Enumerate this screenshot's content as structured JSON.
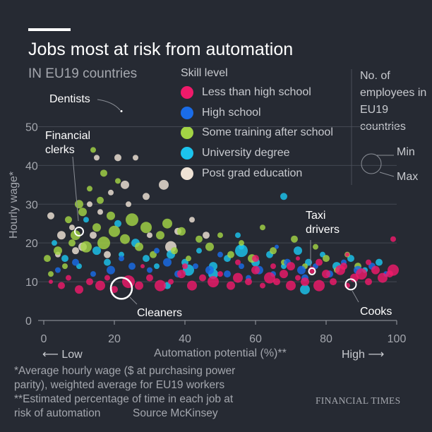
{
  "header": {
    "title": "Jobs most at risk from automation",
    "subtitle": "IN EU19 countries"
  },
  "legend": {
    "title": "Skill level",
    "items": [
      {
        "label": "Less than high school",
        "color": "#ef1a6a"
      },
      {
        "label": "High school",
        "color": "#1a6ce8"
      },
      {
        "label": "Some training after school",
        "color": "#a3d445"
      },
      {
        "label": "University degree",
        "color": "#1cc4ee"
      },
      {
        "label": "Post grad education",
        "color": "#efe3d6"
      }
    ],
    "size_title": "No. of employees in EU19 countries",
    "size_min": "Min",
    "size_max": "Max"
  },
  "axes": {
    "y_label": "Hourly wage*",
    "x_label": "Automation potential (%)**",
    "x_low": "⟵ Low",
    "x_high": "High ⟶"
  },
  "footnotes": {
    "line1": "*Average hourly wage ($ at purchasing power",
    "line2": "parity), weighted average for EU19 workers",
    "line3": "**Estimated percentage of time in each job at",
    "line4": "risk of automation",
    "source": "Source McKinsey",
    "brand": "FINANCIAL TIMES"
  },
  "chart_data": {
    "type": "scatter",
    "title": "Jobs most at risk from automation",
    "subtitle": "IN EU19 countries",
    "xlabel": "Automation potential (%)**",
    "ylabel": "Hourly wage*",
    "xlim": [
      0,
      100
    ],
    "ylim": [
      0,
      55
    ],
    "xticks": [
      0,
      20,
      40,
      60,
      80,
      100
    ],
    "yticks": [
      0,
      10,
      20,
      30,
      40,
      50
    ],
    "grid": "horizontal",
    "size_encoding": "No. of employees in EU19 countries",
    "series": [
      {
        "name": "Less than high school",
        "color": "#ef1a6a",
        "points": [
          [
            2,
            10,
            3
          ],
          [
            5,
            9,
            5
          ],
          [
            7,
            11,
            4
          ],
          [
            10,
            8,
            6
          ],
          [
            13,
            10,
            5
          ],
          [
            16,
            9,
            7
          ],
          [
            18,
            11,
            4
          ],
          [
            20,
            8,
            5
          ],
          [
            24,
            10,
            9
          ],
          [
            27,
            9,
            6
          ],
          [
            30,
            11,
            5
          ],
          [
            33,
            9,
            8
          ],
          [
            36,
            10,
            4
          ],
          [
            39,
            12,
            6
          ],
          [
            42,
            9,
            7
          ],
          [
            45,
            11,
            5
          ],
          [
            48,
            10,
            8
          ],
          [
            50,
            12,
            4
          ],
          [
            53,
            9,
            6
          ],
          [
            55,
            11,
            7
          ],
          [
            58,
            10,
            5
          ],
          [
            60,
            13,
            6
          ],
          [
            62,
            9,
            4
          ],
          [
            64,
            11,
            8
          ],
          [
            66,
            10,
            5
          ],
          [
            68,
            12,
            6
          ],
          [
            70,
            9,
            7
          ],
          [
            72,
            11,
            4
          ],
          [
            74,
            10,
            6
          ],
          [
            76,
            13,
            5
          ],
          [
            78,
            9,
            8
          ],
          [
            80,
            12,
            6
          ],
          [
            82,
            10,
            5
          ],
          [
            84,
            13,
            7
          ],
          [
            86,
            9,
            4
          ],
          [
            88,
            11,
            6
          ],
          [
            90,
            12,
            8
          ],
          [
            92,
            10,
            5
          ],
          [
            94,
            13,
            6
          ],
          [
            96,
            11,
            7
          ],
          [
            98,
            12,
            5
          ],
          [
            99,
            13,
            8
          ],
          [
            55,
            15,
            4
          ],
          [
            60,
            16,
            5
          ],
          [
            70,
            14,
            6
          ],
          [
            85,
            14,
            5
          ],
          [
            92,
            15,
            4
          ],
          [
            40,
            14,
            4
          ],
          [
            28,
            14,
            3
          ],
          [
            99,
            21,
            4
          ],
          [
            78,
            15,
            5
          ],
          [
            65,
            14,
            4
          ],
          [
            72,
            16,
            3
          ],
          [
            86,
            17,
            3
          ]
        ]
      },
      {
        "name": "High school",
        "color": "#1a6ce8",
        "points": [
          [
            4,
            13,
            4
          ],
          [
            9,
            15,
            5
          ],
          [
            14,
            12,
            4
          ],
          [
            19,
            13,
            6
          ],
          [
            25,
            14,
            5
          ],
          [
            30,
            13,
            4
          ],
          [
            35,
            15,
            6
          ],
          [
            38,
            12,
            5
          ],
          [
            43,
            14,
            4
          ],
          [
            47,
            13,
            6
          ],
          [
            52,
            12,
            5
          ],
          [
            56,
            14,
            4
          ],
          [
            61,
            13,
            6
          ],
          [
            65,
            12,
            4
          ],
          [
            69,
            15,
            5
          ],
          [
            73,
            13,
            6
          ],
          [
            77,
            14,
            4
          ],
          [
            81,
            12,
            5
          ],
          [
            85,
            15,
            4
          ],
          [
            89,
            13,
            6
          ],
          [
            93,
            14,
            5
          ],
          [
            97,
            12,
            4
          ],
          [
            50,
            17,
            4
          ],
          [
            66,
            19,
            3
          ],
          [
            32,
            18,
            4
          ],
          [
            22,
            16,
            4
          ],
          [
            58,
            11,
            4
          ],
          [
            74,
            11,
            5
          ]
        ]
      },
      {
        "name": "Some training after school",
        "color": "#a3d445",
        "points": [
          [
            1,
            16,
            5
          ],
          [
            4,
            18,
            6
          ],
          [
            6,
            14,
            4
          ],
          [
            7,
            26,
            5
          ],
          [
            9,
            22,
            7
          ],
          [
            11,
            28,
            6
          ],
          [
            12,
            19,
            8
          ],
          [
            13,
            34,
            4
          ],
          [
            15,
            24,
            6
          ],
          [
            16,
            31,
            5
          ],
          [
            17,
            20,
            9
          ],
          [
            19,
            27,
            6
          ],
          [
            20,
            23,
            8
          ],
          [
            21,
            36,
            4
          ],
          [
            23,
            21,
            7
          ],
          [
            25,
            26,
            9
          ],
          [
            27,
            19,
            6
          ],
          [
            29,
            24,
            8
          ],
          [
            31,
            17,
            5
          ],
          [
            33,
            22,
            6
          ],
          [
            35,
            25,
            7
          ],
          [
            37,
            18,
            5
          ],
          [
            39,
            23,
            6
          ],
          [
            41,
            16,
            4
          ],
          [
            44,
            21,
            5
          ],
          [
            47,
            19,
            6
          ],
          [
            50,
            22,
            4
          ],
          [
            53,
            17,
            5
          ],
          [
            56,
            20,
            4
          ],
          [
            59,
            16,
            6
          ],
          [
            62,
            24,
            4
          ],
          [
            65,
            18,
            5
          ],
          [
            68,
            15,
            4
          ],
          [
            71,
            21,
            5
          ],
          [
            74,
            14,
            4
          ],
          [
            77,
            19,
            4
          ],
          [
            80,
            16,
            5
          ],
          [
            83,
            13,
            4
          ],
          [
            86,
            17,
            4
          ],
          [
            89,
            14,
            5
          ],
          [
            14,
            44,
            4
          ],
          [
            17,
            38,
            5
          ],
          [
            10,
            30,
            6
          ],
          [
            8,
            20,
            5
          ],
          [
            2,
            12,
            4
          ]
        ]
      },
      {
        "name": "University degree",
        "color": "#1cc4ee",
        "points": [
          [
            3,
            20,
            4
          ],
          [
            6,
            16,
            5
          ],
          [
            10,
            14,
            4
          ],
          [
            15,
            18,
            6
          ],
          [
            18,
            15,
            5
          ],
          [
            22,
            17,
            4
          ],
          [
            26,
            20,
            6
          ],
          [
            29,
            16,
            5
          ],
          [
            32,
            14,
            4
          ],
          [
            36,
            17,
            6
          ],
          [
            40,
            15,
            5
          ],
          [
            44,
            18,
            4
          ],
          [
            48,
            14,
            6
          ],
          [
            52,
            16,
            5
          ],
          [
            56,
            19,
            4
          ],
          [
            60,
            15,
            6
          ],
          [
            64,
            17,
            5
          ],
          [
            68,
            14,
            4
          ],
          [
            72,
            18,
            6
          ],
          [
            75,
            15,
            5
          ],
          [
            79,
            17,
            4
          ],
          [
            83,
            14,
            6
          ],
          [
            87,
            16,
            5
          ],
          [
            91,
            13,
            4
          ],
          [
            95,
            15,
            5
          ],
          [
            56,
            18,
            9
          ],
          [
            48,
            12,
            7
          ],
          [
            68,
            32,
            5
          ],
          [
            55,
            22,
            4
          ],
          [
            41,
            13,
            8
          ],
          [
            74,
            8,
            7
          ],
          [
            35,
            9,
            5
          ],
          [
            21,
            25,
            5
          ],
          [
            12,
            26,
            4
          ]
        ]
      },
      {
        "name": "Post grad education",
        "color": "#efe3d6",
        "points": [
          [
            2,
            27,
            5
          ],
          [
            5,
            22,
            6
          ],
          [
            8,
            24,
            4
          ],
          [
            11,
            19,
            6
          ],
          [
            14,
            22,
            5
          ],
          [
            16,
            28,
            4
          ],
          [
            18,
            17,
            5
          ],
          [
            21,
            42,
            5
          ],
          [
            23,
            35,
            6
          ],
          [
            26,
            42,
            4
          ],
          [
            29,
            32,
            5
          ],
          [
            34,
            35,
            7
          ],
          [
            36,
            19,
            8
          ],
          [
            38,
            23,
            5
          ],
          [
            42,
            26,
            4
          ],
          [
            46,
            22,
            5
          ],
          [
            13,
            30,
            4
          ],
          [
            9,
            18,
            5
          ],
          [
            24,
            30,
            4
          ],
          [
            30,
            22,
            4
          ],
          [
            15,
            42,
            4
          ],
          [
            19,
            33,
            4
          ],
          [
            4,
            17,
            4
          ]
        ]
      }
    ],
    "annotations": [
      {
        "label": "Dentists",
        "x": 22,
        "y": 54
      },
      {
        "label": "Financial clerks",
        "x": 10,
        "y": 23.5
      },
      {
        "label": "Cleaners",
        "x": 22,
        "y": 8.3
      },
      {
        "label": "Taxi drivers",
        "x": 76,
        "y": 12.5
      },
      {
        "label": "Cooks",
        "x": 87,
        "y": 9.5
      }
    ]
  }
}
